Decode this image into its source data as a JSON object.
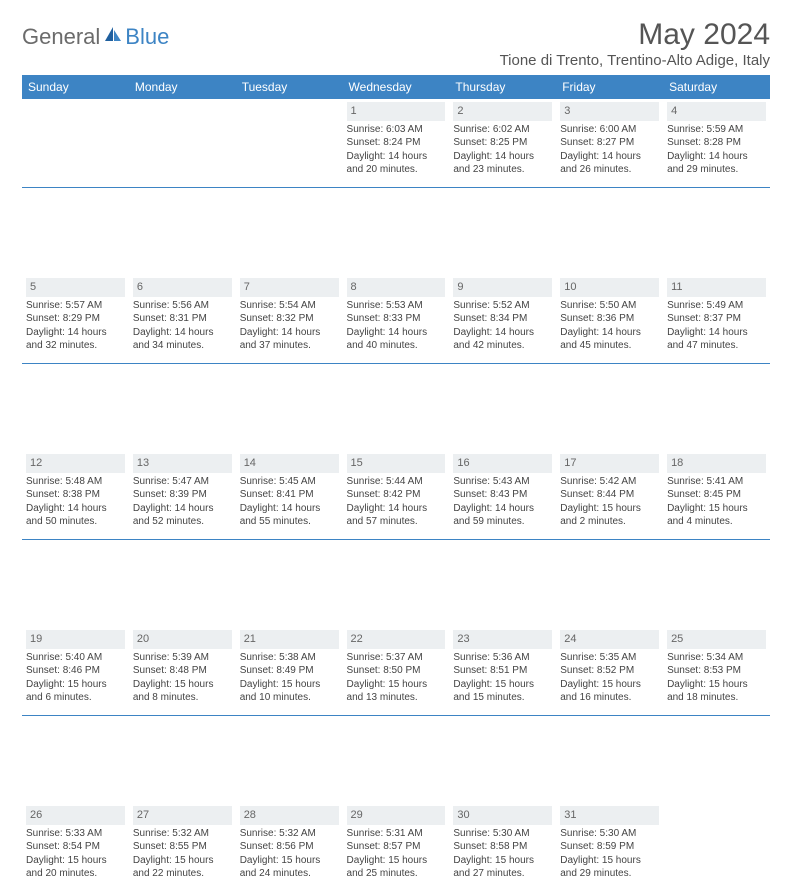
{
  "brand": {
    "part1": "General",
    "part2": "Blue"
  },
  "title": "May 2024",
  "location": "Tione di Trento, Trentino-Alto Adige, Italy",
  "colors": {
    "header_bg": "#3d84c4",
    "header_text": "#ffffff",
    "daynum_bg": "#eceff1",
    "text": "#444444",
    "logo_gray": "#6b6b6b",
    "logo_blue": "#3d84c4"
  },
  "weekdays": [
    "Sunday",
    "Monday",
    "Tuesday",
    "Wednesday",
    "Thursday",
    "Friday",
    "Saturday"
  ],
  "weeks": [
    [
      null,
      null,
      null,
      {
        "n": "1",
        "sr": "6:03 AM",
        "ss": "8:24 PM",
        "dl": "14 hours and 20 minutes."
      },
      {
        "n": "2",
        "sr": "6:02 AM",
        "ss": "8:25 PM",
        "dl": "14 hours and 23 minutes."
      },
      {
        "n": "3",
        "sr": "6:00 AM",
        "ss": "8:27 PM",
        "dl": "14 hours and 26 minutes."
      },
      {
        "n": "4",
        "sr": "5:59 AM",
        "ss": "8:28 PM",
        "dl": "14 hours and 29 minutes."
      }
    ],
    [
      {
        "n": "5",
        "sr": "5:57 AM",
        "ss": "8:29 PM",
        "dl": "14 hours and 32 minutes."
      },
      {
        "n": "6",
        "sr": "5:56 AM",
        "ss": "8:31 PM",
        "dl": "14 hours and 34 minutes."
      },
      {
        "n": "7",
        "sr": "5:54 AM",
        "ss": "8:32 PM",
        "dl": "14 hours and 37 minutes."
      },
      {
        "n": "8",
        "sr": "5:53 AM",
        "ss": "8:33 PM",
        "dl": "14 hours and 40 minutes."
      },
      {
        "n": "9",
        "sr": "5:52 AM",
        "ss": "8:34 PM",
        "dl": "14 hours and 42 minutes."
      },
      {
        "n": "10",
        "sr": "5:50 AM",
        "ss": "8:36 PM",
        "dl": "14 hours and 45 minutes."
      },
      {
        "n": "11",
        "sr": "5:49 AM",
        "ss": "8:37 PM",
        "dl": "14 hours and 47 minutes."
      }
    ],
    [
      {
        "n": "12",
        "sr": "5:48 AM",
        "ss": "8:38 PM",
        "dl": "14 hours and 50 minutes."
      },
      {
        "n": "13",
        "sr": "5:47 AM",
        "ss": "8:39 PM",
        "dl": "14 hours and 52 minutes."
      },
      {
        "n": "14",
        "sr": "5:45 AM",
        "ss": "8:41 PM",
        "dl": "14 hours and 55 minutes."
      },
      {
        "n": "15",
        "sr": "5:44 AM",
        "ss": "8:42 PM",
        "dl": "14 hours and 57 minutes."
      },
      {
        "n": "16",
        "sr": "5:43 AM",
        "ss": "8:43 PM",
        "dl": "14 hours and 59 minutes."
      },
      {
        "n": "17",
        "sr": "5:42 AM",
        "ss": "8:44 PM",
        "dl": "15 hours and 2 minutes."
      },
      {
        "n": "18",
        "sr": "5:41 AM",
        "ss": "8:45 PM",
        "dl": "15 hours and 4 minutes."
      }
    ],
    [
      {
        "n": "19",
        "sr": "5:40 AM",
        "ss": "8:46 PM",
        "dl": "15 hours and 6 minutes."
      },
      {
        "n": "20",
        "sr": "5:39 AM",
        "ss": "8:48 PM",
        "dl": "15 hours and 8 minutes."
      },
      {
        "n": "21",
        "sr": "5:38 AM",
        "ss": "8:49 PM",
        "dl": "15 hours and 10 minutes."
      },
      {
        "n": "22",
        "sr": "5:37 AM",
        "ss": "8:50 PM",
        "dl": "15 hours and 13 minutes."
      },
      {
        "n": "23",
        "sr": "5:36 AM",
        "ss": "8:51 PM",
        "dl": "15 hours and 15 minutes."
      },
      {
        "n": "24",
        "sr": "5:35 AM",
        "ss": "8:52 PM",
        "dl": "15 hours and 16 minutes."
      },
      {
        "n": "25",
        "sr": "5:34 AM",
        "ss": "8:53 PM",
        "dl": "15 hours and 18 minutes."
      }
    ],
    [
      {
        "n": "26",
        "sr": "5:33 AM",
        "ss": "8:54 PM",
        "dl": "15 hours and 20 minutes."
      },
      {
        "n": "27",
        "sr": "5:32 AM",
        "ss": "8:55 PM",
        "dl": "15 hours and 22 minutes."
      },
      {
        "n": "28",
        "sr": "5:32 AM",
        "ss": "8:56 PM",
        "dl": "15 hours and 24 minutes."
      },
      {
        "n": "29",
        "sr": "5:31 AM",
        "ss": "8:57 PM",
        "dl": "15 hours and 25 minutes."
      },
      {
        "n": "30",
        "sr": "5:30 AM",
        "ss": "8:58 PM",
        "dl": "15 hours and 27 minutes."
      },
      {
        "n": "31",
        "sr": "5:30 AM",
        "ss": "8:59 PM",
        "dl": "15 hours and 29 minutes."
      },
      null
    ]
  ],
  "labels": {
    "sunrise": "Sunrise:",
    "sunset": "Sunset:",
    "daylight": "Daylight:"
  }
}
